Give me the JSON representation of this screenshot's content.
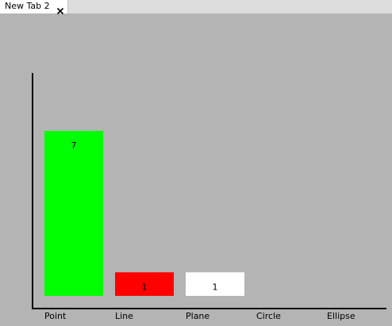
{
  "tab": {
    "label": "New Tab 2",
    "close_icon": "close-icon"
  },
  "chart_data": {
    "type": "bar",
    "categories": [
      "Point",
      "Line",
      "Plane",
      "Circle",
      "Ellipse"
    ],
    "values": [
      7,
      1,
      1,
      0,
      0
    ],
    "value_labels": [
      "7",
      "1",
      "1",
      "",
      ""
    ],
    "colors": [
      "#00ff00",
      "#ff0000",
      "#ffffff",
      "#ffffff",
      "#ffffff"
    ],
    "title": "",
    "xlabel": "",
    "ylabel": "",
    "ylim": [
      0,
      10
    ],
    "grid": false
  }
}
